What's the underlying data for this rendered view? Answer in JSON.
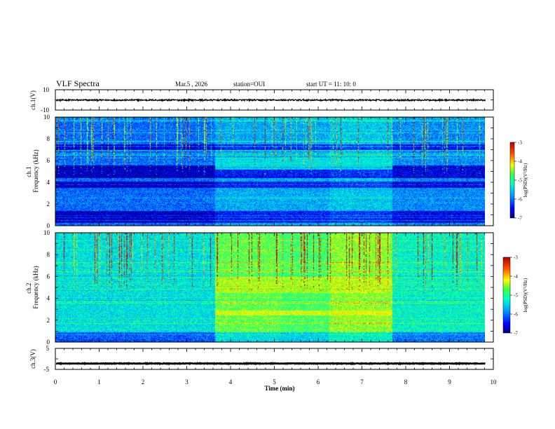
{
  "header": {
    "title": "VLF Spectra",
    "date": "Mar.5  , 2026",
    "station": "station=OUI",
    "start": "start  UT =   11: 10: 0"
  },
  "chart_data": [
    {
      "type": "line",
      "panel": "ch1-waveform",
      "ylabel": "ch.1(V)",
      "ylim": [
        -10,
        10
      ],
      "y_ticks": [
        "10",
        "-10"
      ],
      "series": [
        {
          "values_mean": -0.2,
          "noise_amplitude": 0.7
        }
      ]
    },
    {
      "type": "heatmap",
      "panel": "ch1-spectrogram",
      "ylabel": "ch.1\nFrequency  (kHz)",
      "ylim": [
        0,
        10
      ],
      "y_ticks": [
        "0",
        "2",
        "4",
        "6",
        "8",
        "10"
      ],
      "colorbar": {
        "label": "log(PSD)(V²/Hz)",
        "range": [
          -7,
          -3
        ],
        "ticks": [
          "-3",
          "-4",
          "-5",
          "-6",
          "-7"
        ]
      },
      "segments": [
        {
          "t_start": 0,
          "t_end": 3.65,
          "level": 0.24
        },
        {
          "t_start": 3.65,
          "t_end": 6.25,
          "level": 0.32
        },
        {
          "t_start": 6.25,
          "t_end": 7.7,
          "level": 0.36
        },
        {
          "t_start": 7.7,
          "t_end": 9.82,
          "level": 0.28
        }
      ],
      "dark_bands_khz": [
        [
          7.0,
          7.5
        ],
        [
          4.4,
          5.6
        ],
        [
          3.5,
          4.1
        ],
        [
          0.3,
          1.4
        ]
      ],
      "bright_bands_khz": [
        [
          5.2,
          6.3,
          0.38
        ],
        [
          2.5,
          2.75,
          0.3
        ]
      ],
      "spikes": 70
    },
    {
      "type": "heatmap",
      "panel": "ch2-spectrogram",
      "ylabel": "ch.2\nFrequency  (kHz)",
      "ylim": [
        0,
        10
      ],
      "y_ticks": [
        "0",
        "2",
        "4",
        "6",
        "8",
        "10"
      ],
      "colorbar": {
        "label": "log(PSD)(V²/Hz)",
        "range": [
          -7,
          -3
        ],
        "ticks": [
          "-3",
          "-4",
          "-5",
          "-6",
          "-7"
        ]
      },
      "segments": [
        {
          "t_start": 0,
          "t_end": 3.65,
          "level": 0.4
        },
        {
          "t_start": 3.65,
          "t_end": 5.15,
          "level": 0.58
        },
        {
          "t_start": 5.15,
          "t_end": 6.25,
          "level": 0.55
        },
        {
          "t_start": 6.25,
          "t_end": 7.7,
          "level": 0.62
        },
        {
          "t_start": 7.7,
          "t_end": 9.82,
          "level": 0.44
        }
      ],
      "dark_bands_khz": [
        [
          0.0,
          0.9
        ]
      ],
      "bright_bands_khz": [
        [
          4.5,
          6.0,
          0.62
        ],
        [
          2.5,
          2.9,
          0.68
        ]
      ],
      "spikes": 90
    },
    {
      "type": "line",
      "panel": "ch3-waveform",
      "ylabel": "ch.3(V)",
      "ylim": [
        -5,
        5
      ],
      "y_ticks": [
        "5",
        "-5"
      ],
      "series": [
        {
          "values_mean": -2.2,
          "noise_amplitude": 0.15
        }
      ]
    }
  ],
  "x_axis": {
    "label": "Time  (min)",
    "range": [
      0,
      10
    ],
    "ticks": [
      "0",
      "1",
      "2",
      "3",
      "4",
      "5",
      "6",
      "7",
      "8",
      "9",
      "10"
    ],
    "data_end": 9.82
  }
}
